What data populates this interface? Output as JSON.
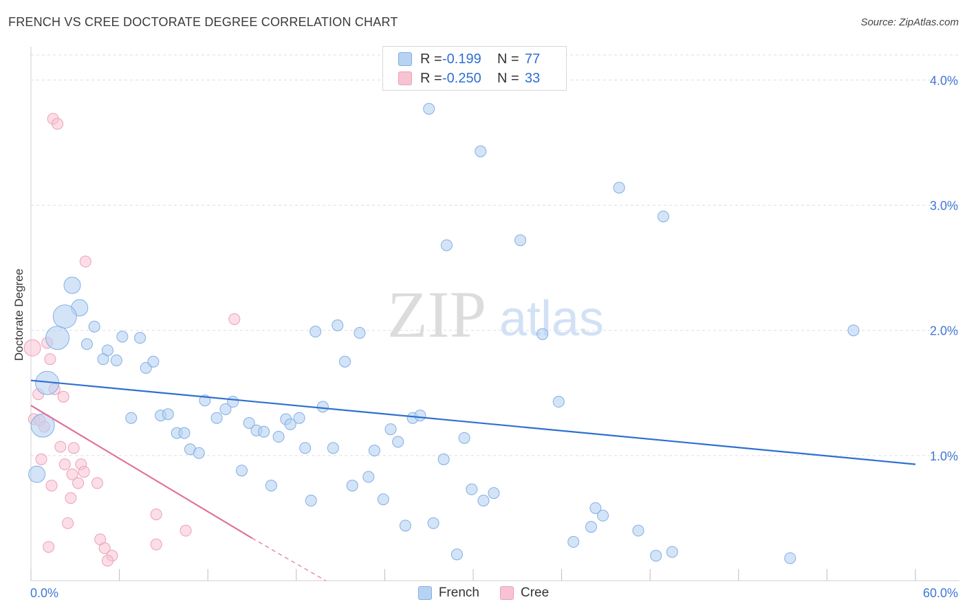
{
  "header": {
    "title": "FRENCH VS CREE DOCTORATE DEGREE CORRELATION CHART",
    "source": "Source: ZipAtlas.com"
  },
  "watermark": {
    "zip": "ZIP",
    "atlas": "atlas"
  },
  "legend_top": {
    "french": {
      "r_label": "R =",
      "r_value": "-0.199",
      "n_label": "N =",
      "n_value": "77"
    },
    "cree": {
      "r_label": "R =",
      "r_value": "-0.250",
      "n_label": "N =",
      "n_value": "33"
    }
  },
  "legend_bottom": {
    "french": "French",
    "cree": "Cree"
  },
  "colors": {
    "french_fill": "#b8d2f2",
    "french_stroke": "#7faee6",
    "french_line": "#2e6fd0",
    "cree_fill": "#f7c3d2",
    "cree_stroke": "#ee9fb8",
    "cree_line": "#e0709a",
    "grid": "#dddddd",
    "tick_label": "#3f76d6"
  },
  "chart_data": {
    "type": "scatter",
    "title": "FRENCH VS CREE DOCTORATE DEGREE CORRELATION CHART",
    "xlabel": "",
    "ylabel": "Doctorate Degree",
    "xlim": [
      0,
      60
    ],
    "ylim": [
      0,
      4.2
    ],
    "x_tick_labels": [
      "0.0%",
      "60.0%"
    ],
    "y_ticks": [
      1,
      2,
      3,
      4
    ],
    "y_tick_labels": [
      "1.0%",
      "2.0%",
      "3.0%",
      "4.0%"
    ],
    "grid": true,
    "series": [
      {
        "name": "French",
        "r": -0.199,
        "n": 77,
        "trend": {
          "x": [
            0,
            60
          ],
          "y": [
            1.6,
            0.93
          ]
        },
        "points": [
          {
            "x": 27.0,
            "y": 3.77,
            "s": 1
          },
          {
            "x": 30.5,
            "y": 3.43,
            "s": 1
          },
          {
            "x": 39.9,
            "y": 3.14,
            "s": 1
          },
          {
            "x": 42.9,
            "y": 2.91,
            "s": 1
          },
          {
            "x": 28.2,
            "y": 2.68,
            "s": 1
          },
          {
            "x": 33.2,
            "y": 2.72,
            "s": 1
          },
          {
            "x": 2.8,
            "y": 2.36,
            "s": 2
          },
          {
            "x": 3.3,
            "y": 2.18,
            "s": 2
          },
          {
            "x": 2.3,
            "y": 2.11,
            "s": 3
          },
          {
            "x": 1.8,
            "y": 1.94,
            "s": 3
          },
          {
            "x": 1.1,
            "y": 1.58,
            "s": 3
          },
          {
            "x": 0.8,
            "y": 1.24,
            "s": 3
          },
          {
            "x": 0.4,
            "y": 0.85,
            "s": 2
          },
          {
            "x": 4.3,
            "y": 2.03,
            "s": 1
          },
          {
            "x": 3.8,
            "y": 1.89,
            "s": 1
          },
          {
            "x": 6.2,
            "y": 1.95,
            "s": 1
          },
          {
            "x": 7.4,
            "y": 1.94,
            "s": 1
          },
          {
            "x": 5.2,
            "y": 1.84,
            "s": 1
          },
          {
            "x": 4.9,
            "y": 1.77,
            "s": 1
          },
          {
            "x": 5.8,
            "y": 1.76,
            "s": 1
          },
          {
            "x": 7.8,
            "y": 1.7,
            "s": 1
          },
          {
            "x": 8.3,
            "y": 1.75,
            "s": 1
          },
          {
            "x": 19.3,
            "y": 1.99,
            "s": 1
          },
          {
            "x": 20.8,
            "y": 2.04,
            "s": 1
          },
          {
            "x": 22.3,
            "y": 1.98,
            "s": 1
          },
          {
            "x": 21.3,
            "y": 1.75,
            "s": 1
          },
          {
            "x": 34.7,
            "y": 1.97,
            "s": 1
          },
          {
            "x": 55.8,
            "y": 2.0,
            "s": 1
          },
          {
            "x": 6.8,
            "y": 1.3,
            "s": 1
          },
          {
            "x": 8.8,
            "y": 1.32,
            "s": 1
          },
          {
            "x": 9.3,
            "y": 1.33,
            "s": 1
          },
          {
            "x": 11.8,
            "y": 1.44,
            "s": 1
          },
          {
            "x": 12.6,
            "y": 1.3,
            "s": 1
          },
          {
            "x": 13.2,
            "y": 1.37,
            "s": 1
          },
          {
            "x": 13.7,
            "y": 1.43,
            "s": 1
          },
          {
            "x": 14.3,
            "y": 0.88,
            "s": 1
          },
          {
            "x": 9.9,
            "y": 1.18,
            "s": 1
          },
          {
            "x": 10.4,
            "y": 1.18,
            "s": 1
          },
          {
            "x": 10.8,
            "y": 1.05,
            "s": 1
          },
          {
            "x": 11.4,
            "y": 1.02,
            "s": 1
          },
          {
            "x": 14.8,
            "y": 1.26,
            "s": 1
          },
          {
            "x": 15.3,
            "y": 1.2,
            "s": 1
          },
          {
            "x": 15.8,
            "y": 1.19,
            "s": 1
          },
          {
            "x": 16.3,
            "y": 0.76,
            "s": 1
          },
          {
            "x": 16.8,
            "y": 1.15,
            "s": 1
          },
          {
            "x": 17.3,
            "y": 1.29,
            "s": 1
          },
          {
            "x": 17.6,
            "y": 1.25,
            "s": 1
          },
          {
            "x": 18.2,
            "y": 1.3,
            "s": 1
          },
          {
            "x": 18.6,
            "y": 1.06,
            "s": 1
          },
          {
            "x": 19.0,
            "y": 0.64,
            "s": 1
          },
          {
            "x": 19.8,
            "y": 1.39,
            "s": 1
          },
          {
            "x": 20.5,
            "y": 1.06,
            "s": 1
          },
          {
            "x": 21.8,
            "y": 0.76,
            "s": 1
          },
          {
            "x": 22.9,
            "y": 0.83,
            "s": 1
          },
          {
            "x": 23.3,
            "y": 1.04,
            "s": 1
          },
          {
            "x": 23.9,
            "y": 0.65,
            "s": 1
          },
          {
            "x": 24.4,
            "y": 1.21,
            "s": 1
          },
          {
            "x": 24.9,
            "y": 1.11,
            "s": 1
          },
          {
            "x": 25.4,
            "y": 0.44,
            "s": 1
          },
          {
            "x": 25.9,
            "y": 1.3,
            "s": 1
          },
          {
            "x": 26.4,
            "y": 1.32,
            "s": 1
          },
          {
            "x": 27.3,
            "y": 0.46,
            "s": 1
          },
          {
            "x": 28.0,
            "y": 0.97,
            "s": 1
          },
          {
            "x": 28.9,
            "y": 0.21,
            "s": 1
          },
          {
            "x": 29.4,
            "y": 1.14,
            "s": 1
          },
          {
            "x": 29.9,
            "y": 0.73,
            "s": 1
          },
          {
            "x": 30.7,
            "y": 0.64,
            "s": 1
          },
          {
            "x": 31.4,
            "y": 0.7,
            "s": 1
          },
          {
            "x": 35.8,
            "y": 1.43,
            "s": 1
          },
          {
            "x": 36.8,
            "y": 0.31,
            "s": 1
          },
          {
            "x": 38.0,
            "y": 0.43,
            "s": 1
          },
          {
            "x": 38.3,
            "y": 0.58,
            "s": 1
          },
          {
            "x": 38.8,
            "y": 0.52,
            "s": 1
          },
          {
            "x": 41.2,
            "y": 0.4,
            "s": 1
          },
          {
            "x": 42.4,
            "y": 0.2,
            "s": 1
          },
          {
            "x": 43.5,
            "y": 0.23,
            "s": 1
          },
          {
            "x": 51.5,
            "y": 0.18,
            "s": 1
          }
        ]
      },
      {
        "name": "Cree",
        "r": -0.25,
        "n": 33,
        "trend": {
          "x": [
            0,
            15
          ],
          "y": [
            1.4,
            0.34
          ],
          "dashed_extension": {
            "x": [
              15,
              20
            ],
            "y": [
              0.34,
              0.0
            ]
          }
        },
        "points": [
          {
            "x": 1.5,
            "y": 3.69,
            "s": 1
          },
          {
            "x": 1.8,
            "y": 3.65,
            "s": 1
          },
          {
            "x": 3.7,
            "y": 2.55,
            "s": 1
          },
          {
            "x": 13.8,
            "y": 2.09,
            "s": 1
          },
          {
            "x": 0.1,
            "y": 1.86,
            "s": 2
          },
          {
            "x": 1.1,
            "y": 1.9,
            "s": 1
          },
          {
            "x": 1.3,
            "y": 1.77,
            "s": 1
          },
          {
            "x": 1.6,
            "y": 1.53,
            "s": 1
          },
          {
            "x": 0.5,
            "y": 1.49,
            "s": 1
          },
          {
            "x": 2.2,
            "y": 1.47,
            "s": 1
          },
          {
            "x": 0.2,
            "y": 1.29,
            "s": 1
          },
          {
            "x": 0.6,
            "y": 1.28,
            "s": 1
          },
          {
            "x": 0.9,
            "y": 1.23,
            "s": 1
          },
          {
            "x": 2.0,
            "y": 1.07,
            "s": 1
          },
          {
            "x": 2.9,
            "y": 1.06,
            "s": 1
          },
          {
            "x": 0.7,
            "y": 0.97,
            "s": 1
          },
          {
            "x": 2.3,
            "y": 0.93,
            "s": 1
          },
          {
            "x": 3.4,
            "y": 0.93,
            "s": 1
          },
          {
            "x": 2.8,
            "y": 0.85,
            "s": 1
          },
          {
            "x": 3.6,
            "y": 0.87,
            "s": 1
          },
          {
            "x": 1.4,
            "y": 0.76,
            "s": 1
          },
          {
            "x": 3.2,
            "y": 0.78,
            "s": 1
          },
          {
            "x": 4.5,
            "y": 0.78,
            "s": 1
          },
          {
            "x": 2.7,
            "y": 0.66,
            "s": 1
          },
          {
            "x": 8.5,
            "y": 0.53,
            "s": 1
          },
          {
            "x": 2.5,
            "y": 0.46,
            "s": 1
          },
          {
            "x": 10.5,
            "y": 0.4,
            "s": 1
          },
          {
            "x": 4.7,
            "y": 0.33,
            "s": 1
          },
          {
            "x": 8.5,
            "y": 0.29,
            "s": 1
          },
          {
            "x": 1.2,
            "y": 0.27,
            "s": 1
          },
          {
            "x": 5.0,
            "y": 0.26,
            "s": 1
          },
          {
            "x": 5.5,
            "y": 0.2,
            "s": 1
          },
          {
            "x": 5.2,
            "y": 0.16,
            "s": 1
          }
        ]
      }
    ]
  }
}
